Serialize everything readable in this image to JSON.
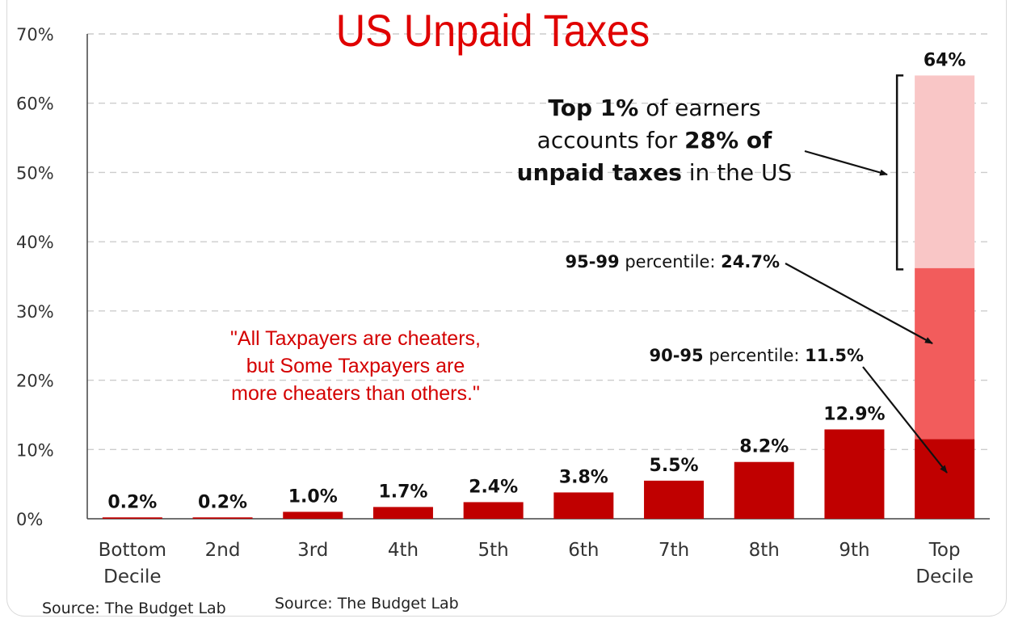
{
  "title": "US Unpaid Taxes",
  "sources": [
    "Source: The Budget Lab",
    "Source: The Budget Lab"
  ],
  "quote": [
    "\"All Taxpayers are cheaters,",
    "but Some Taxpayers are",
    "more cheaters than others.\""
  ],
  "annotations": {
    "top1": {
      "line1_bold": "Top 1%",
      "line1_rest": "of earners",
      "line2_plain": "accounts for",
      "line2_bold": "28% of",
      "line3_bold": "unpaid taxes",
      "line3_rest": "in the US"
    },
    "p95_99": {
      "label_bold": "95-99",
      "label_plain": "percentile:",
      "value": "24.7%"
    },
    "p90_95": {
      "label_bold": "90-95",
      "label_plain": "percentile:",
      "value": "11.5%"
    }
  },
  "chart_data": {
    "type": "bar",
    "title": "US Unpaid Taxes",
    "categories": [
      "Bottom Decile",
      "2nd",
      "3rd",
      "4th",
      "5th",
      "6th",
      "7th",
      "8th",
      "9th",
      "Top Decile"
    ],
    "values": [
      0.2,
      0.2,
      1.0,
      1.7,
      2.4,
      3.8,
      5.5,
      8.2,
      12.9,
      64
    ],
    "value_labels": [
      "0.2%",
      "0.2%",
      "1.0%",
      "1.7%",
      "2.4%",
      "3.8%",
      "5.5%",
      "8.2%",
      "12.9%",
      "64%"
    ],
    "top_decile_breakdown": [
      {
        "segment": "90-95 percentile",
        "value": 11.5
      },
      {
        "segment": "95-99 percentile",
        "value": 24.7
      },
      {
        "segment": "Top 1%",
        "value": 28
      }
    ],
    "y_ticks": [
      "0%",
      "10%",
      "20%",
      "30%",
      "40%",
      "50%",
      "60%",
      "70%"
    ],
    "ylim": [
      0,
      70
    ],
    "xlabel": "",
    "ylabel": "",
    "grid": true,
    "colors": {
      "bar": "#c00000",
      "seg_mid": "#f25c5c",
      "seg_top": "#f9c6c6",
      "grid": "#cccccc",
      "title": "#e00000"
    }
  }
}
